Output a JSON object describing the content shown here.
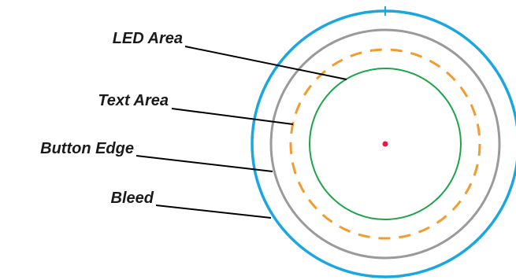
{
  "labels": {
    "led_area": "LED Area",
    "text_area": "Text Area",
    "button_edge": "Button Edge",
    "bleed": "Bleed"
  },
  "colors": {
    "bleed": "#1aa7e0",
    "button_edge": "#9a9a9a",
    "text_area": "#f29b2e",
    "led_area": "#1fa34a",
    "center_dot": "#e8194a",
    "label_text": "#1a1a1a",
    "leader_line": "#000000"
  }
}
